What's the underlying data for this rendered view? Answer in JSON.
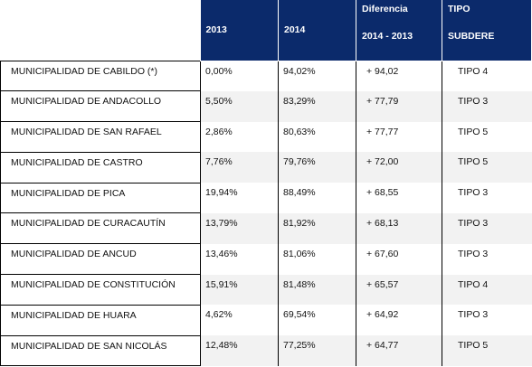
{
  "header": {
    "col_2013": "2013",
    "col_2014": "2014",
    "col_diff_line1": "Diferencia",
    "col_diff_line2": "2014 - 2013",
    "col_tipo_line1": "TIPO",
    "col_tipo_line2": "SUBDERE"
  },
  "rows": [
    {
      "name": "MUNICIPALIDAD DE CABILDO (*)",
      "y2013": "0,00%",
      "y2014": "94,02%",
      "diff": "+ 94,02",
      "tipo": "TIPO 4"
    },
    {
      "name": "MUNICIPALIDAD DE ANDACOLLO",
      "y2013": "5,50%",
      "y2014": "83,29%",
      "diff": "+ 77,79",
      "tipo": "TIPO 3"
    },
    {
      "name": "MUNICIPALIDAD DE SAN RAFAEL",
      "y2013": "2,86%",
      "y2014": "80,63%",
      "diff": "+ 77,77",
      "tipo": "TIPO 5"
    },
    {
      "name": "MUNICIPALIDAD DE CASTRO",
      "y2013": "7,76%",
      "y2014": "79,76%",
      "diff": "+ 72,00",
      "tipo": "TIPO 5"
    },
    {
      "name": "MUNICIPALIDAD DE PICA",
      "y2013": "19,94%",
      "y2014": "88,49%",
      "diff": "+ 68,55",
      "tipo": "TIPO 3"
    },
    {
      "name": "MUNICIPALIDAD DE CURACAUTÍN",
      "y2013": "13,79%",
      "y2014": "81,92%",
      "diff": "+ 68,13",
      "tipo": "TIPO 3"
    },
    {
      "name": "MUNICIPALIDAD DE ANCUD",
      "y2013": "13,46%",
      "y2014": "81,06%",
      "diff": "+ 67,60",
      "tipo": "TIPO 3"
    },
    {
      "name": "MUNICIPALIDAD DE CONSTITUCIÓN",
      "y2013": "15,91%",
      "y2014": "81,48%",
      "diff": "+ 65,57",
      "tipo": "TIPO 4"
    },
    {
      "name": "MUNICIPALIDAD DE HUARA",
      "y2013": "4,62%",
      "y2014": "69,54%",
      "diff": "+ 64,92",
      "tipo": "TIPO 3"
    },
    {
      "name": "MUNICIPALIDAD DE SAN NICOLÁS",
      "y2013": "12,48%",
      "y2014": "77,25%",
      "diff": "+ 64,77",
      "tipo": "TIPO 5"
    }
  ],
  "colors": {
    "header_bg": "#0b2a6b",
    "header_text": "#ffffff",
    "row_shade": "#f2f2f2"
  }
}
